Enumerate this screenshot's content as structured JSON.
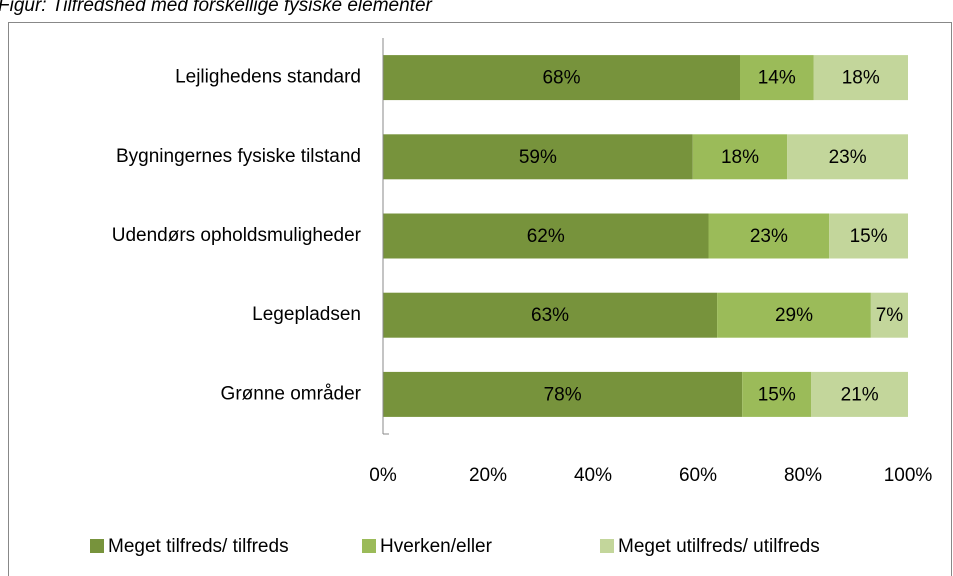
{
  "chart_data": {
    "type": "percent_stacked_bar_horizontal",
    "title": "Figur: Tilfredshed med forskellige fysiske elementer",
    "categories": [
      "Lejlighedens standard",
      "Bygningernes fysiske tilstand",
      "Udendørs opholdsmuligheder",
      "Legepladsen",
      "Grønne områder"
    ],
    "series": [
      {
        "name": "Meget tilfreds/ tilfreds",
        "color": "#77933c",
        "values": [
          68,
          59,
          62,
          63,
          78
        ],
        "value_labels": [
          "68%",
          "59%",
          "62%",
          "63%",
          "78%"
        ]
      },
      {
        "name": "Hverken/eller",
        "color": "#9bbb59",
        "values": [
          14,
          18,
          23,
          29,
          15
        ],
        "value_labels": [
          "14%",
          "18%",
          "23%",
          "29%",
          "15%"
        ]
      },
      {
        "name": "Meget utilfreds/ utilfreds",
        "color": "#c3d69b",
        "values": [
          18,
          23,
          15,
          7,
          21
        ],
        "value_labels": [
          "18%",
          "23%",
          "15%",
          "7%",
          "21%"
        ]
      }
    ],
    "xlim": [
      0,
      100
    ],
    "xticks": [
      {
        "value": 0,
        "label": "0%"
      },
      {
        "value": 20,
        "label": "20%"
      },
      {
        "value": 40,
        "label": "40%"
      },
      {
        "value": 60,
        "label": "60%"
      },
      {
        "value": 80,
        "label": "80%"
      },
      {
        "value": 100,
        "label": "100%"
      }
    ],
    "grid": false,
    "legend": "bottom"
  }
}
